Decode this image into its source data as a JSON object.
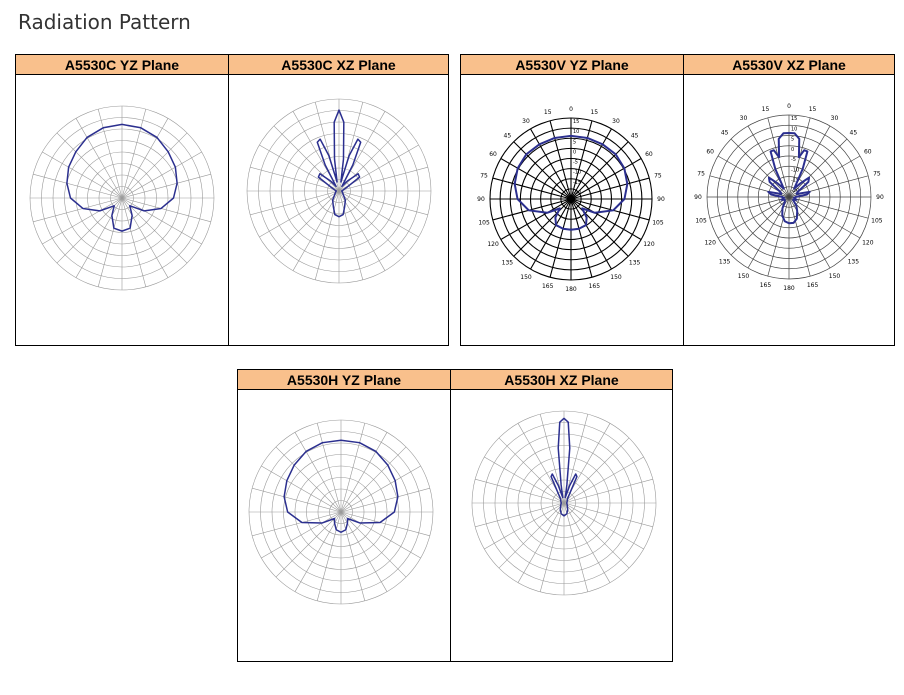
{
  "page": {
    "title": "Radiation Pattern"
  },
  "colors": {
    "header_bg": "#F9C08C",
    "pattern": "#2B2F8F",
    "grid": "#9A9A9A",
    "grid_dark": "#000000"
  },
  "chart_data": [
    {
      "id": "c-yz",
      "type": "polar",
      "title": "A5530C YZ Plane",
      "grid_style": "light",
      "angle_labels": [],
      "pattern": [
        [
          0,
          0.8
        ],
        [
          15,
          0.79
        ],
        [
          30,
          0.76
        ],
        [
          45,
          0.71
        ],
        [
          60,
          0.67
        ],
        [
          75,
          0.62
        ],
        [
          90,
          0.56
        ],
        [
          105,
          0.44
        ],
        [
          120,
          0.28
        ],
        [
          135,
          0.12
        ],
        [
          150,
          0.22
        ],
        [
          165,
          0.34
        ],
        [
          180,
          0.36
        ],
        [
          195,
          0.34
        ],
        [
          210,
          0.22
        ],
        [
          225,
          0.12
        ],
        [
          240,
          0.28
        ],
        [
          255,
          0.44
        ],
        [
          270,
          0.56
        ],
        [
          285,
          0.62
        ],
        [
          300,
          0.67
        ],
        [
          315,
          0.71
        ],
        [
          330,
          0.76
        ],
        [
          345,
          0.79
        ]
      ]
    },
    {
      "id": "c-xz",
      "type": "polar",
      "title": "A5530C XZ Plane",
      "grid_style": "light",
      "angle_labels": [],
      "pattern": [
        [
          0,
          0.88
        ],
        [
          4,
          0.75
        ],
        [
          8,
          0.35
        ],
        [
          12,
          0.1
        ],
        [
          16,
          0.4
        ],
        [
          20,
          0.6
        ],
        [
          24,
          0.58
        ],
        [
          28,
          0.32
        ],
        [
          32,
          0.06
        ],
        [
          40,
          0.14
        ],
        [
          48,
          0.28
        ],
        [
          56,
          0.27
        ],
        [
          64,
          0.1
        ],
        [
          75,
          0.05
        ],
        [
          90,
          0.03
        ],
        [
          110,
          0.04
        ],
        [
          130,
          0.06
        ],
        [
          145,
          0.12
        ],
        [
          160,
          0.18
        ],
        [
          170,
          0.26
        ],
        [
          180,
          0.28
        ],
        [
          190,
          0.26
        ],
        [
          200,
          0.18
        ],
        [
          215,
          0.12
        ],
        [
          230,
          0.06
        ],
        [
          250,
          0.04
        ],
        [
          270,
          0.03
        ],
        [
          285,
          0.05
        ],
        [
          296,
          0.1
        ],
        [
          304,
          0.27
        ],
        [
          312,
          0.28
        ],
        [
          320,
          0.14
        ],
        [
          328,
          0.06
        ],
        [
          332,
          0.32
        ],
        [
          336,
          0.58
        ],
        [
          340,
          0.6
        ],
        [
          344,
          0.4
        ],
        [
          348,
          0.1
        ],
        [
          352,
          0.35
        ],
        [
          356,
          0.75
        ]
      ]
    },
    {
      "id": "v-yz",
      "type": "polar",
      "title": "A5530V YZ Plane",
      "grid_style": "dark",
      "angle_labels": [
        "0",
        "15",
        "30",
        "45",
        "60",
        "75",
        "90",
        "105",
        "120",
        "135",
        "150",
        "165",
        "180",
        "165",
        "150",
        "135",
        "120",
        "105",
        "90",
        "75",
        "60",
        "45",
        "30",
        "15"
      ],
      "radial_labels": [
        "15",
        "10",
        "5",
        "0",
        "-5",
        "-10",
        "-15",
        "-20"
      ],
      "pattern": [
        [
          0,
          0.78
        ],
        [
          15,
          0.78
        ],
        [
          30,
          0.78
        ],
        [
          45,
          0.78
        ],
        [
          60,
          0.76
        ],
        [
          75,
          0.72
        ],
        [
          90,
          0.66
        ],
        [
          105,
          0.54
        ],
        [
          120,
          0.34
        ],
        [
          130,
          0.18
        ],
        [
          140,
          0.3
        ],
        [
          150,
          0.37
        ],
        [
          165,
          0.38
        ],
        [
          180,
          0.38
        ],
        [
          195,
          0.38
        ],
        [
          210,
          0.37
        ],
        [
          220,
          0.3
        ],
        [
          230,
          0.18
        ],
        [
          240,
          0.34
        ],
        [
          255,
          0.54
        ],
        [
          270,
          0.66
        ],
        [
          285,
          0.72
        ],
        [
          300,
          0.76
        ],
        [
          315,
          0.78
        ],
        [
          330,
          0.78
        ],
        [
          345,
          0.78
        ]
      ]
    },
    {
      "id": "v-xz",
      "type": "polar",
      "title": "A5530V XZ Plane",
      "grid_style": "medium",
      "angle_labels": [
        "0",
        "15",
        "30",
        "45",
        "60",
        "75",
        "90",
        "105",
        "120",
        "135",
        "150",
        "165",
        "180",
        "165",
        "150",
        "135",
        "120",
        "105",
        "90",
        "75",
        "60",
        "45",
        "30",
        "15"
      ],
      "radial_labels": [
        "15",
        "10",
        "5",
        "0",
        "-5",
        "-10",
        "-15",
        "-20"
      ],
      "pattern": [
        [
          0,
          0.78
        ],
        [
          5,
          0.78
        ],
        [
          10,
          0.72
        ],
        [
          14,
          0.5
        ],
        [
          18,
          0.6
        ],
        [
          22,
          0.6
        ],
        [
          26,
          0.38
        ],
        [
          32,
          0.12
        ],
        [
          40,
          0.22
        ],
        [
          46,
          0.34
        ],
        [
          52,
          0.3
        ],
        [
          60,
          0.12
        ],
        [
          68,
          0.1
        ],
        [
          76,
          0.26
        ],
        [
          82,
          0.22
        ],
        [
          90,
          0.08
        ],
        [
          100,
          0.06
        ],
        [
          110,
          0.1
        ],
        [
          125,
          0.06
        ],
        [
          140,
          0.14
        ],
        [
          150,
          0.2
        ],
        [
          160,
          0.28
        ],
        [
          170,
          0.32
        ],
        [
          180,
          0.32
        ],
        [
          190,
          0.3
        ],
        [
          200,
          0.24
        ],
        [
          210,
          0.16
        ],
        [
          220,
          0.08
        ],
        [
          235,
          0.06
        ],
        [
          250,
          0.1
        ],
        [
          260,
          0.06
        ],
        [
          270,
          0.08
        ],
        [
          278,
          0.22
        ],
        [
          284,
          0.26
        ],
        [
          292,
          0.1
        ],
        [
          300,
          0.12
        ],
        [
          308,
          0.3
        ],
        [
          314,
          0.34
        ],
        [
          320,
          0.22
        ],
        [
          328,
          0.12
        ],
        [
          334,
          0.38
        ],
        [
          338,
          0.6
        ],
        [
          342,
          0.6
        ],
        [
          346,
          0.5
        ],
        [
          350,
          0.72
        ],
        [
          355,
          0.78
        ]
      ]
    },
    {
      "id": "h-yz",
      "type": "polar",
      "title": "A5530H YZ Plane",
      "grid_style": "light",
      "angle_labels": [],
      "pattern": [
        [
          0,
          0.78
        ],
        [
          15,
          0.78
        ],
        [
          30,
          0.76
        ],
        [
          45,
          0.72
        ],
        [
          60,
          0.68
        ],
        [
          75,
          0.64
        ],
        [
          90,
          0.58
        ],
        [
          105,
          0.44
        ],
        [
          120,
          0.24
        ],
        [
          135,
          0.1
        ],
        [
          150,
          0.14
        ],
        [
          165,
          0.2
        ],
        [
          180,
          0.22
        ],
        [
          195,
          0.2
        ],
        [
          210,
          0.14
        ],
        [
          225,
          0.1
        ],
        [
          240,
          0.24
        ],
        [
          255,
          0.44
        ],
        [
          270,
          0.58
        ],
        [
          285,
          0.64
        ],
        [
          300,
          0.68
        ],
        [
          315,
          0.72
        ],
        [
          330,
          0.76
        ],
        [
          345,
          0.78
        ]
      ]
    },
    {
      "id": "h-xz",
      "type": "polar",
      "title": "A5530H XZ Plane",
      "grid_style": "light",
      "angle_labels": [],
      "pattern": [
        [
          0,
          0.92
        ],
        [
          3,
          0.88
        ],
        [
          6,
          0.6
        ],
        [
          9,
          0.2
        ],
        [
          13,
          0.06
        ],
        [
          18,
          0.2
        ],
        [
          22,
          0.34
        ],
        [
          26,
          0.32
        ],
        [
          30,
          0.14
        ],
        [
          40,
          0.06
        ],
        [
          60,
          0.04
        ],
        [
          90,
          0.03
        ],
        [
          120,
          0.04
        ],
        [
          150,
          0.08
        ],
        [
          165,
          0.12
        ],
        [
          180,
          0.14
        ],
        [
          195,
          0.12
        ],
        [
          210,
          0.08
        ],
        [
          240,
          0.04
        ],
        [
          270,
          0.03
        ],
        [
          300,
          0.04
        ],
        [
          320,
          0.06
        ],
        [
          330,
          0.14
        ],
        [
          334,
          0.32
        ],
        [
          338,
          0.34
        ],
        [
          342,
          0.2
        ],
        [
          347,
          0.06
        ],
        [
          351,
          0.2
        ],
        [
          354,
          0.6
        ],
        [
          357,
          0.88
        ]
      ]
    }
  ]
}
